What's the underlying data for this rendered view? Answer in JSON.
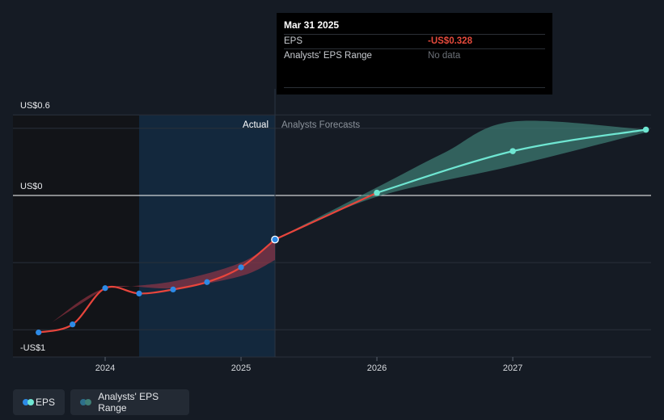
{
  "chart_data": {
    "type": "line",
    "y_axis_labels": [
      "US$0.6",
      "US$0",
      "-US$1"
    ],
    "x_tick_labels": [
      "2024",
      "2025",
      "2026",
      "2027"
    ],
    "section_labels": {
      "actual": "Actual",
      "forecast": "Analysts Forecasts"
    },
    "y_range": [
      -1.0,
      0.6
    ],
    "x_range": [
      2023.43,
      2027.98
    ],
    "series": [
      {
        "name": "EPS",
        "kind": "actual",
        "color": "#e8453c",
        "point_color": "#2d8ae6",
        "points": [
          [
            2023.51,
            -1.02
          ],
          [
            2023.76,
            -0.96
          ],
          [
            2024.0,
            -0.69
          ],
          [
            2024.25,
            -0.73
          ],
          [
            2024.5,
            -0.7
          ],
          [
            2024.75,
            -0.645
          ],
          [
            2025.0,
            -0.535
          ],
          [
            2025.25,
            -0.328
          ]
        ]
      },
      {
        "name": "EPS",
        "kind": "forecast",
        "color": "#e8453c",
        "forecast_color": "#6fe6d2",
        "points": [
          [
            2025.25,
            -0.328
          ],
          [
            2026.0,
            0.02
          ],
          [
            2027.0,
            0.33
          ],
          [
            2027.98,
            0.49
          ]
        ]
      }
    ],
    "ranges": [
      {
        "name": "Analysts' EPS Range",
        "kind": "actual",
        "color": "#b0394a",
        "upper": [
          [
            2024.0,
            -0.69
          ],
          [
            2024.5,
            -0.64
          ],
          [
            2025.0,
            -0.5
          ],
          [
            2025.25,
            -0.33
          ]
        ],
        "lower": [
          [
            2023.6,
            -0.95
          ],
          [
            2024.0,
            -0.69
          ],
          [
            2024.5,
            -0.69
          ],
          [
            2025.0,
            -0.6
          ],
          [
            2025.25,
            -0.48
          ]
        ]
      },
      {
        "name": "Analysts' EPS Range",
        "kind": "forecast",
        "color": "#3f7f76",
        "upper": [
          [
            2025.25,
            -0.328
          ],
          [
            2026.0,
            0.06
          ],
          [
            2026.5,
            0.32
          ],
          [
            2027.0,
            0.55
          ],
          [
            2027.98,
            0.49
          ]
        ],
        "lower": [
          [
            2025.25,
            -0.328
          ],
          [
            2026.0,
            -0.01
          ],
          [
            2027.0,
            0.22
          ],
          [
            2027.98,
            0.47
          ]
        ]
      }
    ],
    "colors": {
      "actual_band": "#13283d",
      "past_shade": "#121418",
      "axis_line": "#ffffff",
      "grid": "#2a313b"
    }
  },
  "tooltip": {
    "date": "Mar 31 2025",
    "eps_label": "EPS",
    "eps_value": "-US$0.328",
    "range_label": "Analysts' EPS Range",
    "range_value": "No data"
  },
  "legend": {
    "eps_label": "EPS",
    "eps_colors": [
      "#2d8ae6",
      "#6fe6d2"
    ],
    "range_label": "Analysts' EPS Range",
    "range_colors": [
      "#2d6f8a",
      "#3f7f76"
    ]
  }
}
